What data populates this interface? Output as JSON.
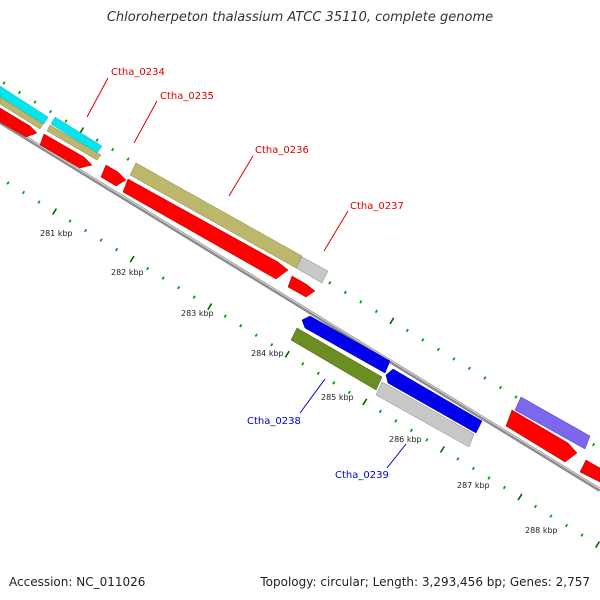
{
  "title": "Chloroherpeton thalassium ATCC 35110, complete genome",
  "accession": "Accession: NC_011026",
  "summary": "Topology: circular; Length: 3,293,456 bp; Genes: 2,757",
  "colors": {
    "red": "#ff0000",
    "khaki": "#bdb76b",
    "cyan": "#00e5ee",
    "silver": "#c8c8c8",
    "blue": "#0000ee",
    "olive": "#6b8e23",
    "slate": "#7b68ee",
    "tick_dark": "#006400",
    "tick_light": "#00a000",
    "backbone": "#8c8c8c",
    "label_red": "#dd0000",
    "label_blue": "#0000cc"
  },
  "ticks": [
    {
      "label": "281 kbp"
    },
    {
      "label": "282 kbp"
    },
    {
      "label": "283 kbp"
    },
    {
      "label": "284 kbp"
    },
    {
      "label": "285 kbp"
    },
    {
      "label": "286 kbp"
    },
    {
      "label": "287 kbp"
    },
    {
      "label": "288 kbp"
    }
  ],
  "genes": [
    {
      "name": "Ctha_0234",
      "strand": "forward"
    },
    {
      "name": "Ctha_0235",
      "strand": "forward"
    },
    {
      "name": "Ctha_0236",
      "strand": "forward"
    },
    {
      "name": "Ctha_0237",
      "strand": "forward"
    },
    {
      "name": "Ctha_0238",
      "strand": "reverse"
    },
    {
      "name": "Ctha_0239",
      "strand": "reverse"
    }
  ]
}
